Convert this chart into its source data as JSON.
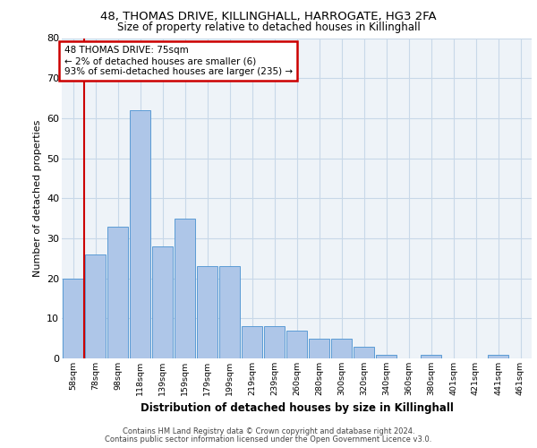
{
  "title_line1": "48, THOMAS DRIVE, KILLINGHALL, HARROGATE, HG3 2FA",
  "title_line2": "Size of property relative to detached houses in Killinghall",
  "xlabel": "Distribution of detached houses by size in Killinghall",
  "ylabel": "Number of detached properties",
  "footer_line1": "Contains HM Land Registry data © Crown copyright and database right 2024.",
  "footer_line2": "Contains public sector information licensed under the Open Government Licence v3.0.",
  "categories": [
    "58sqm",
    "78sqm",
    "98sqm",
    "118sqm",
    "139sqm",
    "159sqm",
    "179sqm",
    "199sqm",
    "219sqm",
    "239sqm",
    "260sqm",
    "280sqm",
    "300sqm",
    "320sqm",
    "340sqm",
    "360sqm",
    "380sqm",
    "401sqm",
    "421sqm",
    "441sqm",
    "461sqm"
  ],
  "values": [
    20,
    26,
    33,
    62,
    28,
    35,
    23,
    23,
    8,
    8,
    7,
    5,
    5,
    3,
    1,
    0,
    1,
    0,
    0,
    1,
    0
  ],
  "bar_color": "#aec6e8",
  "bar_edge_color": "#5b9bd5",
  "grid_color": "#c8d8e8",
  "background_color": "#eef3f8",
  "annotation_text_line1": "48 THOMAS DRIVE: 75sqm",
  "annotation_text_line2": "← 2% of detached houses are smaller (6)",
  "annotation_text_line3": "93% of semi-detached houses are larger (235) →",
  "ylim": [
    0,
    80
  ],
  "yticks": [
    0,
    10,
    20,
    30,
    40,
    50,
    60,
    70,
    80
  ],
  "red_line_color": "#cc0000",
  "annotation_box_color": "#cc0000"
}
